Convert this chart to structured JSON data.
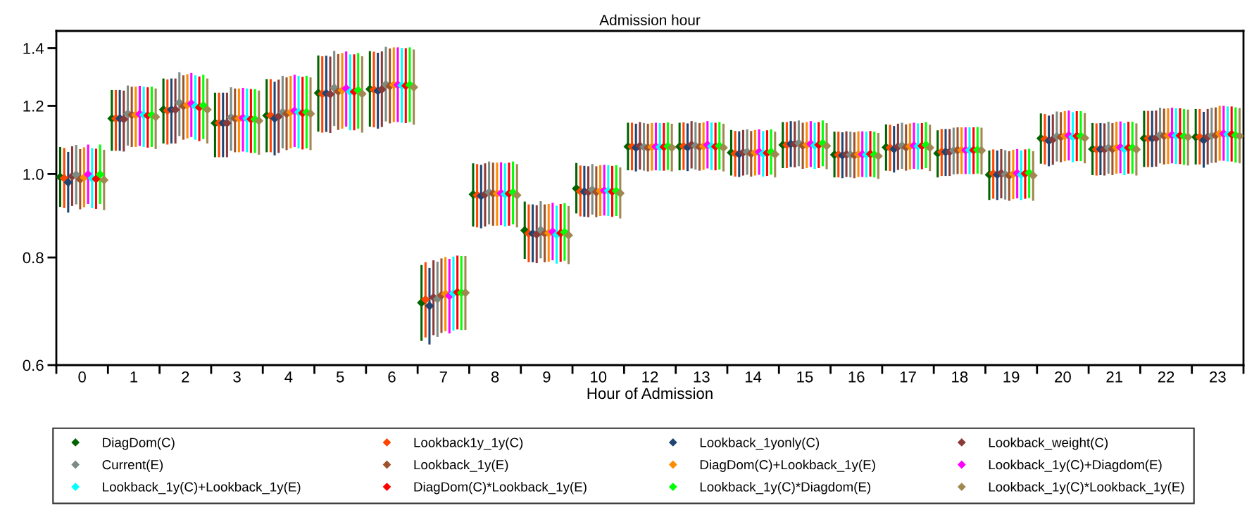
{
  "chart_data": {
    "type": "scatter",
    "title": "Admission hour",
    "xlabel": "Hour of Admission",
    "categories": [
      "0",
      "1",
      "2",
      "3",
      "4",
      "5",
      "6",
      "7",
      "8",
      "9",
      "10",
      "12",
      "13",
      "14",
      "15",
      "16",
      "17",
      "18",
      "19",
      "20",
      "21",
      "22",
      "23"
    ],
    "log": "y",
    "ylim": [
      0.6,
      1.466
    ],
    "yticks": [
      0.6,
      0.8,
      {
        "value": 1,
        "label": "1.0"
      },
      1.2,
      1.4
    ],
    "grid": false,
    "legend": "bottom",
    "marker": "diamond",
    "series": [
      {
        "name": "DiagDom(C)",
        "color": "#006400",
        "values": [
          0.992,
          1.16,
          1.188,
          1.146,
          1.169,
          1.242,
          1.255,
          0.709,
          0.947,
          0.86,
          0.962,
          1.076,
          1.076,
          1.059,
          1.081,
          1.053,
          1.074,
          1.057,
          0.998,
          1.1,
          1.069,
          1.1,
          1.104
        ],
        "errors": [
          [
            0.916,
            1.075
          ],
          [
            1.064,
            1.252
          ],
          [
            1.085,
            1.291
          ],
          [
            1.046,
            1.243
          ],
          [
            1.06,
            1.289
          ],
          [
            1.12,
            1.373
          ],
          [
            1.135,
            1.389
          ],
          [
            0.64,
            0.784
          ],
          [
            0.869,
            1.029
          ],
          [
            0.797,
            0.929
          ],
          [
            0.9,
            1.03
          ],
          [
            1.01,
            1.147
          ],
          [
            1.01,
            1.147
          ],
          [
            0.996,
            1.125
          ],
          [
            1.016,
            1.149
          ],
          [
            0.991,
            1.12
          ],
          [
            1.009,
            1.142
          ],
          [
            0.991,
            1.124
          ],
          [
            0.933,
            1.065
          ],
          [
            1.028,
            1.176
          ],
          [
            0.997,
            1.146
          ],
          [
            1.019,
            1.184
          ],
          [
            1.026,
            1.19
          ]
        ]
      },
      {
        "name": "Lookback1y_1y(C)",
        "color": "#ff4500",
        "values": [
          0.989,
          1.16,
          1.185,
          1.146,
          1.169,
          1.239,
          1.253,
          0.715,
          0.945,
          0.853,
          0.955,
          1.076,
          1.077,
          1.056,
          1.081,
          1.053,
          1.073,
          1.061,
          1.001,
          1.098,
          1.068,
          1.1,
          1.104
        ],
        "errors": [
          [
            0.913,
            1.072
          ],
          [
            1.064,
            1.252
          ],
          [
            1.082,
            1.288
          ],
          [
            1.046,
            1.243
          ],
          [
            1.06,
            1.289
          ],
          [
            1.117,
            1.37
          ],
          [
            1.133,
            1.387
          ],
          [
            0.646,
            0.79
          ],
          [
            0.867,
            1.027
          ],
          [
            0.79,
            0.922
          ],
          [
            0.893,
            1.023
          ],
          [
            1.01,
            1.147
          ],
          [
            1.011,
            1.148
          ],
          [
            0.993,
            1.122
          ],
          [
            1.016,
            1.149
          ],
          [
            0.991,
            1.12
          ],
          [
            1.008,
            1.141
          ],
          [
            0.995,
            1.128
          ],
          [
            0.936,
            1.068
          ],
          [
            1.026,
            1.174
          ],
          [
            0.996,
            1.145
          ],
          [
            1.019,
            1.184
          ],
          [
            1.026,
            1.19
          ]
        ]
      },
      {
        "name": "Lookback_1yonly(C)",
        "color": "#1f4673",
        "values": [
          0.978,
          1.16,
          1.188,
          1.146,
          1.16,
          1.241,
          1.249,
          0.703,
          0.943,
          0.853,
          0.954,
          1.073,
          1.074,
          1.055,
          1.084,
          1.051,
          1.069,
          1.061,
          0.998,
          1.093,
          1.069,
          1.1,
          1.095
        ],
        "errors": [
          [
            0.902,
            1.061
          ],
          [
            1.064,
            1.252
          ],
          [
            1.085,
            1.291
          ],
          [
            1.046,
            1.243
          ],
          [
            1.051,
            1.28
          ],
          [
            1.119,
            1.372
          ],
          [
            1.129,
            1.383
          ],
          [
            0.634,
            0.778
          ],
          [
            0.865,
            1.025
          ],
          [
            0.79,
            0.922
          ],
          [
            0.892,
            1.022
          ],
          [
            1.007,
            1.144
          ],
          [
            1.008,
            1.145
          ],
          [
            0.992,
            1.121
          ],
          [
            1.019,
            1.152
          ],
          [
            0.989,
            1.118
          ],
          [
            1.004,
            1.137
          ],
          [
            0.995,
            1.128
          ],
          [
            0.933,
            1.065
          ],
          [
            1.021,
            1.169
          ],
          [
            0.997,
            1.146
          ],
          [
            1.019,
            1.184
          ],
          [
            1.017,
            1.181
          ]
        ]
      },
      {
        "name": "Lookback_weight(C)",
        "color": "#8b3a3a",
        "values": [
          0.994,
          1.158,
          1.188,
          1.146,
          1.167,
          1.238,
          1.254,
          0.719,
          0.947,
          0.851,
          0.953,
          1.078,
          1.081,
          1.059,
          1.083,
          1.054,
          1.076,
          1.061,
          1.002,
          1.097,
          1.068,
          1.101,
          1.104
        ],
        "errors": [
          [
            0.918,
            1.077
          ],
          [
            1.062,
            1.25
          ],
          [
            1.085,
            1.291
          ],
          [
            1.046,
            1.243
          ],
          [
            1.058,
            1.287
          ],
          [
            1.116,
            1.369
          ],
          [
            1.134,
            1.388
          ],
          [
            0.65,
            0.794
          ],
          [
            0.869,
            1.029
          ],
          [
            0.788,
            0.92
          ],
          [
            0.891,
            1.021
          ],
          [
            1.012,
            1.149
          ],
          [
            1.015,
            1.152
          ],
          [
            0.996,
            1.125
          ],
          [
            1.018,
            1.151
          ],
          [
            0.992,
            1.121
          ],
          [
            1.011,
            1.144
          ],
          [
            0.995,
            1.128
          ],
          [
            0.937,
            1.069
          ],
          [
            1.025,
            1.173
          ],
          [
            0.996,
            1.145
          ],
          [
            1.02,
            1.185
          ],
          [
            1.026,
            1.19
          ]
        ]
      },
      {
        "name": "Current(E)",
        "color": "#7b8c82",
        "values": [
          0.998,
          1.175,
          1.21,
          1.164,
          1.18,
          1.259,
          1.271,
          0.716,
          0.952,
          0.861,
          0.959,
          1.075,
          1.078,
          1.061,
          1.086,
          1.053,
          1.079,
          1.065,
          0.999,
          1.106,
          1.073,
          1.11,
          1.108
        ],
        "errors": [
          [
            0.922,
            1.081
          ],
          [
            1.079,
            1.267
          ],
          [
            1.107,
            1.313
          ],
          [
            1.064,
            1.261
          ],
          [
            1.071,
            1.3
          ],
          [
            1.137,
            1.39
          ],
          [
            1.151,
            1.405
          ],
          [
            0.647,
            0.791
          ],
          [
            0.874,
            1.034
          ],
          [
            0.798,
            0.93
          ],
          [
            0.897,
            1.027
          ],
          [
            1.009,
            1.146
          ],
          [
            1.012,
            1.149
          ],
          [
            0.998,
            1.127
          ],
          [
            1.021,
            1.154
          ],
          [
            0.991,
            1.12
          ],
          [
            1.014,
            1.147
          ],
          [
            0.999,
            1.132
          ],
          [
            0.934,
            1.066
          ],
          [
            1.034,
            1.182
          ],
          [
            1.001,
            1.15
          ],
          [
            1.029,
            1.194
          ],
          [
            1.03,
            1.194
          ]
        ]
      },
      {
        "name": "Lookback_1y(E)",
        "color": "#a0522d",
        "values": [
          0.986,
          1.171,
          1.199,
          1.16,
          1.175,
          1.247,
          1.265,
          0.723,
          0.949,
          0.853,
          0.953,
          1.073,
          1.075,
          1.056,
          1.079,
          1.051,
          1.074,
          1.066,
          0.996,
          1.104,
          1.069,
          1.107,
          1.109
        ],
        "errors": [
          [
            0.91,
            1.069
          ],
          [
            1.075,
            1.263
          ],
          [
            1.096,
            1.302
          ],
          [
            1.06,
            1.257
          ],
          [
            1.066,
            1.295
          ],
          [
            1.125,
            1.378
          ],
          [
            1.145,
            1.399
          ],
          [
            0.654,
            0.798
          ],
          [
            0.871,
            1.031
          ],
          [
            0.79,
            0.922
          ],
          [
            0.891,
            1.021
          ],
          [
            1.007,
            1.144
          ],
          [
            1.009,
            1.146
          ],
          [
            0.993,
            1.122
          ],
          [
            1.014,
            1.147
          ],
          [
            0.989,
            1.118
          ],
          [
            1.009,
            1.142
          ],
          [
            1.0,
            1.133
          ],
          [
            0.931,
            1.063
          ],
          [
            1.032,
            1.18
          ],
          [
            0.997,
            1.146
          ],
          [
            1.026,
            1.191
          ],
          [
            1.031,
            1.195
          ]
        ]
      },
      {
        "name": "DiagDom(C)+Lookback_1y(E)",
        "color": "#ff8c00",
        "values": [
          0.991,
          1.171,
          1.203,
          1.16,
          1.18,
          1.251,
          1.269,
          0.726,
          0.949,
          0.854,
          0.956,
          1.075,
          1.077,
          1.059,
          1.081,
          1.054,
          1.077,
          1.066,
          1.0,
          1.107,
          1.073,
          1.108,
          1.114
        ],
        "errors": [
          [
            0.915,
            1.074
          ],
          [
            1.075,
            1.263
          ],
          [
            1.1,
            1.306
          ],
          [
            1.06,
            1.257
          ],
          [
            1.071,
            1.3
          ],
          [
            1.129,
            1.382
          ],
          [
            1.149,
            1.403
          ],
          [
            0.657,
            0.801
          ],
          [
            0.871,
            1.031
          ],
          [
            0.791,
            0.923
          ],
          [
            0.894,
            1.024
          ],
          [
            1.009,
            1.146
          ],
          [
            1.011,
            1.148
          ],
          [
            0.996,
            1.125
          ],
          [
            1.016,
            1.149
          ],
          [
            0.992,
            1.121
          ],
          [
            1.012,
            1.145
          ],
          [
            1.0,
            1.133
          ],
          [
            0.935,
            1.067
          ],
          [
            1.035,
            1.183
          ],
          [
            1.001,
            1.15
          ],
          [
            1.027,
            1.192
          ],
          [
            1.036,
            1.2
          ]
        ]
      },
      {
        "name": "Lookback_1y(C)+Diagdom(E)",
        "color": "#ff00ff",
        "values": [
          0.999,
          1.174,
          1.207,
          1.162,
          1.184,
          1.257,
          1.269,
          0.722,
          0.95,
          0.857,
          0.957,
          1.076,
          1.081,
          1.061,
          1.084,
          1.054,
          1.079,
          1.066,
          1.002,
          1.109,
          1.074,
          1.11,
          1.114
        ],
        "errors": [
          [
            0.923,
            1.082
          ],
          [
            1.078,
            1.266
          ],
          [
            1.104,
            1.31
          ],
          [
            1.062,
            1.259
          ],
          [
            1.075,
            1.304
          ],
          [
            1.135,
            1.388
          ],
          [
            1.149,
            1.403
          ],
          [
            0.653,
            0.797
          ],
          [
            0.872,
            1.032
          ],
          [
            0.794,
            0.926
          ],
          [
            0.895,
            1.025
          ],
          [
            1.01,
            1.147
          ],
          [
            1.015,
            1.152
          ],
          [
            0.998,
            1.127
          ],
          [
            1.019,
            1.152
          ],
          [
            0.992,
            1.121
          ],
          [
            1.014,
            1.147
          ],
          [
            1.0,
            1.133
          ],
          [
            0.937,
            1.069
          ],
          [
            1.037,
            1.185
          ],
          [
            1.002,
            1.151
          ],
          [
            1.029,
            1.194
          ],
          [
            1.036,
            1.2
          ]
        ]
      },
      {
        "name": "Lookback_1y(C)+Lookback_1y(E)",
        "color": "#00ffff",
        "values": [
          0.989,
          1.171,
          1.199,
          1.16,
          1.18,
          1.246,
          1.267,
          0.727,
          0.947,
          0.85,
          0.956,
          1.075,
          1.077,
          1.056,
          1.079,
          1.053,
          1.077,
          1.066,
          0.998,
          1.104,
          1.069,
          1.108,
          1.112
        ],
        "errors": [
          [
            0.913,
            1.072
          ],
          [
            1.075,
            1.263
          ],
          [
            1.096,
            1.302
          ],
          [
            1.06,
            1.257
          ],
          [
            1.071,
            1.3
          ],
          [
            1.124,
            1.377
          ],
          [
            1.147,
            1.401
          ],
          [
            0.658,
            0.802
          ],
          [
            0.869,
            1.029
          ],
          [
            0.787,
            0.919
          ],
          [
            0.894,
            1.024
          ],
          [
            1.009,
            1.146
          ],
          [
            1.011,
            1.148
          ],
          [
            0.993,
            1.122
          ],
          [
            1.014,
            1.147
          ],
          [
            0.991,
            1.12
          ],
          [
            1.012,
            1.145
          ],
          [
            1.0,
            1.133
          ],
          [
            0.933,
            1.065
          ],
          [
            1.032,
            1.18
          ],
          [
            0.997,
            1.146
          ],
          [
            1.027,
            1.192
          ],
          [
            1.034,
            1.198
          ]
        ]
      },
      {
        "name": "DiagDom(C)*Lookback_1y(E)",
        "color": "#ff0000",
        "values": [
          0.987,
          1.169,
          1.195,
          1.158,
          1.177,
          1.246,
          1.266,
          0.729,
          0.949,
          0.854,
          0.954,
          1.075,
          1.076,
          1.058,
          1.081,
          1.055,
          1.078,
          1.066,
          1.001,
          1.107,
          1.073,
          1.108,
          1.112
        ],
        "errors": [
          [
            0.911,
            1.07
          ],
          [
            1.073,
            1.261
          ],
          [
            1.092,
            1.298
          ],
          [
            1.058,
            1.255
          ],
          [
            1.068,
            1.297
          ],
          [
            1.124,
            1.377
          ],
          [
            1.146,
            1.4
          ],
          [
            0.66,
            0.804
          ],
          [
            0.871,
            1.031
          ],
          [
            0.791,
            0.923
          ],
          [
            0.892,
            1.022
          ],
          [
            1.009,
            1.146
          ],
          [
            1.01,
            1.147
          ],
          [
            0.995,
            1.124
          ],
          [
            1.016,
            1.149
          ],
          [
            0.993,
            1.122
          ],
          [
            1.013,
            1.146
          ],
          [
            1.0,
            1.133
          ],
          [
            0.936,
            1.068
          ],
          [
            1.035,
            1.183
          ],
          [
            1.001,
            1.15
          ],
          [
            1.027,
            1.192
          ],
          [
            1.034,
            1.198
          ]
        ]
      },
      {
        "name": "Lookback_1y(C)*Diagdom(E)",
        "color": "#00ff00",
        "values": [
          0.999,
          1.171,
          1.201,
          1.158,
          1.18,
          1.251,
          1.269,
          0.728,
          0.952,
          0.856,
          0.956,
          1.077,
          1.078,
          1.061,
          1.086,
          1.053,
          1.081,
          1.067,
          1.003,
          1.107,
          1.073,
          1.106,
          1.109
        ],
        "errors": [
          [
            0.923,
            1.082
          ],
          [
            1.075,
            1.263
          ],
          [
            1.098,
            1.304
          ],
          [
            1.058,
            1.255
          ],
          [
            1.071,
            1.3
          ],
          [
            1.129,
            1.382
          ],
          [
            1.149,
            1.403
          ],
          [
            0.659,
            0.803
          ],
          [
            0.874,
            1.034
          ],
          [
            0.793,
            0.925
          ],
          [
            0.894,
            1.024
          ],
          [
            1.011,
            1.148
          ],
          [
            1.012,
            1.149
          ],
          [
            0.998,
            1.127
          ],
          [
            1.021,
            1.154
          ],
          [
            0.991,
            1.12
          ],
          [
            1.016,
            1.149
          ],
          [
            1.001,
            1.134
          ],
          [
            0.938,
            1.07
          ],
          [
            1.035,
            1.183
          ],
          [
            1.001,
            1.15
          ],
          [
            1.025,
            1.19
          ],
          [
            1.031,
            1.195
          ]
        ]
      },
      {
        "name": "Lookback_1y(C)*Lookback_1y(E)",
        "color": "#a08850",
        "values": [
          0.984,
          1.165,
          1.188,
          1.153,
          1.175,
          1.239,
          1.261,
          0.728,
          0.945,
          0.849,
          0.95,
          1.073,
          1.073,
          1.054,
          1.078,
          1.049,
          1.073,
          1.065,
          0.996,
          1.101,
          1.068,
          1.104,
          1.107
        ],
        "errors": [
          [
            0.908,
            1.067
          ],
          [
            1.069,
            1.257
          ],
          [
            1.085,
            1.291
          ],
          [
            1.053,
            1.25
          ],
          [
            1.066,
            1.295
          ],
          [
            1.117,
            1.37
          ],
          [
            1.141,
            1.395
          ],
          [
            0.659,
            0.803
          ],
          [
            0.867,
            1.027
          ],
          [
            0.786,
            0.918
          ],
          [
            0.888,
            1.018
          ],
          [
            1.007,
            1.144
          ],
          [
            1.007,
            1.144
          ],
          [
            0.991,
            1.12
          ],
          [
            1.013,
            1.146
          ],
          [
            0.987,
            1.116
          ],
          [
            1.008,
            1.141
          ],
          [
            0.999,
            1.132
          ],
          [
            0.931,
            1.063
          ],
          [
            1.029,
            1.177
          ],
          [
            0.996,
            1.145
          ],
          [
            1.023,
            1.188
          ],
          [
            1.029,
            1.193
          ]
        ]
      }
    ]
  }
}
